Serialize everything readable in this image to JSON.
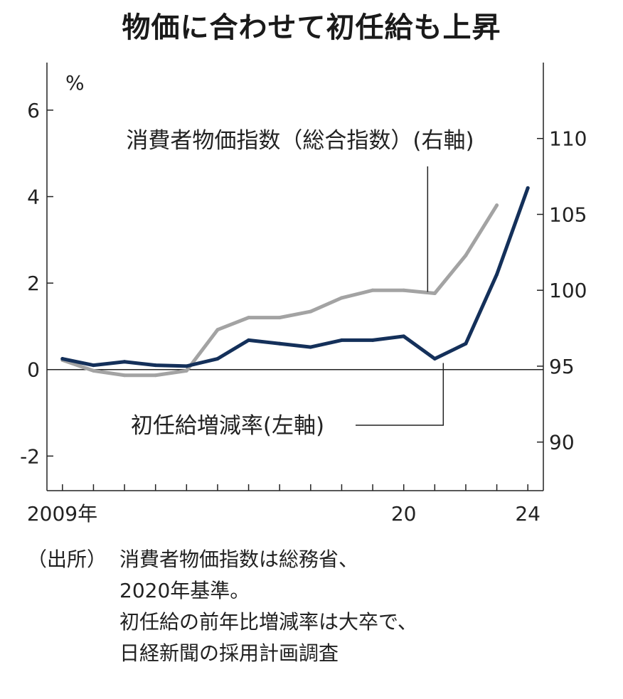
{
  "chart_data": {
    "type": "line",
    "title": "物価に合わせて初任給も上昇",
    "x": [
      2009,
      2010,
      2011,
      2012,
      2013,
      2014,
      2015,
      2016,
      2017,
      2018,
      2019,
      2020,
      2021,
      2022,
      2023,
      2024
    ],
    "x_tick_labels": [
      {
        "x": 2009,
        "label": "2009年"
      },
      {
        "x": 2020,
        "label": "20"
      },
      {
        "x": 2024,
        "label": "24"
      }
    ],
    "left_axis": {
      "unit": "%",
      "ylim": [
        -2.8,
        7.1
      ],
      "ticks": [
        6,
        4,
        2,
        0,
        -2
      ],
      "tick_labels": [
        "6",
        "4",
        "2",
        "0",
        "-2"
      ]
    },
    "right_axis": {
      "ylim": [
        86.8,
        115.0
      ],
      "ticks": [
        110,
        105,
        100,
        95,
        90
      ],
      "tick_labels": [
        "110",
        "105",
        "100",
        "95",
        "90"
      ]
    },
    "series": [
      {
        "name": "消費者物価指数（総合指数）(右軸)",
        "axis": "right",
        "color": "#a3a3a3",
        "values": [
          95.4,
          94.7,
          94.4,
          94.4,
          94.7,
          97.4,
          98.2,
          98.2,
          98.6,
          99.5,
          100.0,
          100.0,
          99.8,
          102.3,
          105.6,
          null
        ]
      },
      {
        "name": "初任給増減率(左軸)",
        "axis": "left",
        "color": "#14305a",
        "values": [
          0.25,
          0.1,
          0.18,
          0.1,
          0.08,
          0.25,
          0.68,
          0.6,
          0.52,
          0.68,
          0.68,
          0.77,
          0.25,
          0.6,
          2.2,
          4.2
        ]
      }
    ],
    "annotations": [
      {
        "text": "消費者物価指数（総合指数）(右軸)",
        "points_to_x": 2021
      },
      {
        "text": "初任給増減率(左軸)",
        "points_to_x": 2021
      }
    ]
  },
  "source": {
    "label": "（出所）",
    "lines": [
      "消費者物価指数は総務省、",
      "2020年基準。",
      "初任給の前年比増減率は大卒で、",
      "日経新聞の採用計画調査"
    ]
  }
}
